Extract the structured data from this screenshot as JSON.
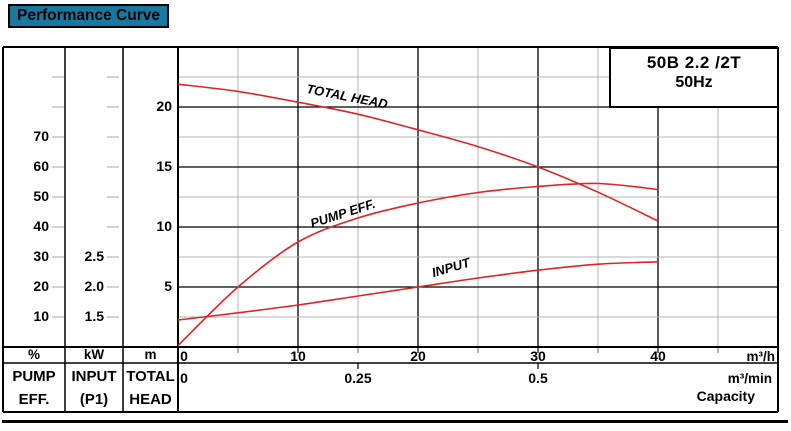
{
  "title": "Performance Curve",
  "model_box": {
    "model": "50B 2.2 /2T",
    "frequency": "50Hz"
  },
  "chart_data": {
    "type": "line",
    "curve_color": "#e02424",
    "grid_minor_color": "#b4b4b4",
    "x_axis_label": "Capacity",
    "x_unit_primary": "m³/h",
    "x_unit_secondary": "m³/min",
    "x_range_m3h": [
      0,
      50
    ],
    "ticks_m3h": [
      {
        "label": "0",
        "q": 0
      },
      {
        "label": "10",
        "q": 10
      },
      {
        "label": "20",
        "q": 20
      },
      {
        "label": "30",
        "q": 30
      },
      {
        "label": "40",
        "q": 40
      }
    ],
    "ticks_m3min": [
      {
        "label": "0",
        "q": 0
      },
      {
        "label": "0.25",
        "q": 15
      },
      {
        "label": "0.5",
        "q": 30
      }
    ],
    "left_axes": [
      {
        "unit": "%",
        "label_line1": "PUMP",
        "label_line2": "EFF.",
        "min": 0,
        "max": 100,
        "ticks": [
          "70",
          "60",
          "50",
          "40",
          "30",
          "20",
          "10"
        ]
      },
      {
        "unit": "kW",
        "label_line1": "INPUT",
        "label_line2": "(P1)",
        "min": 1.0,
        "max": 6.0,
        "ticks": [
          "2.5",
          "2.0",
          "1.5"
        ]
      },
      {
        "unit": "m",
        "label_line1": "TOTAL",
        "label_line2": "HEAD",
        "min": 0,
        "max": 25,
        "ticks": [
          "20",
          "15",
          "10",
          "5"
        ]
      }
    ],
    "series": [
      {
        "name": "TOTAL HEAD",
        "axis": "m",
        "x": [
          0,
          5,
          10,
          15,
          20,
          25,
          30,
          35,
          40
        ],
        "y": [
          21.9,
          21.3,
          20.4,
          19.4,
          18.1,
          16.7,
          15.0,
          12.9,
          10.5
        ]
      },
      {
        "name": "PUMP EFF.",
        "axis": "%",
        "x": [
          0,
          5,
          10,
          15,
          20,
          25,
          30,
          35,
          40
        ],
        "y": [
          0.5,
          20,
          35,
          43,
          48,
          51.5,
          53.5,
          54.5,
          52.5
        ]
      },
      {
        "name": "INPUT",
        "axis": "kW",
        "x": [
          0,
          5,
          10,
          15,
          20,
          25,
          30,
          35,
          40
        ],
        "y": [
          1.45,
          1.57,
          1.7,
          1.85,
          2.0,
          2.15,
          2.28,
          2.38,
          2.42
        ]
      }
    ]
  }
}
